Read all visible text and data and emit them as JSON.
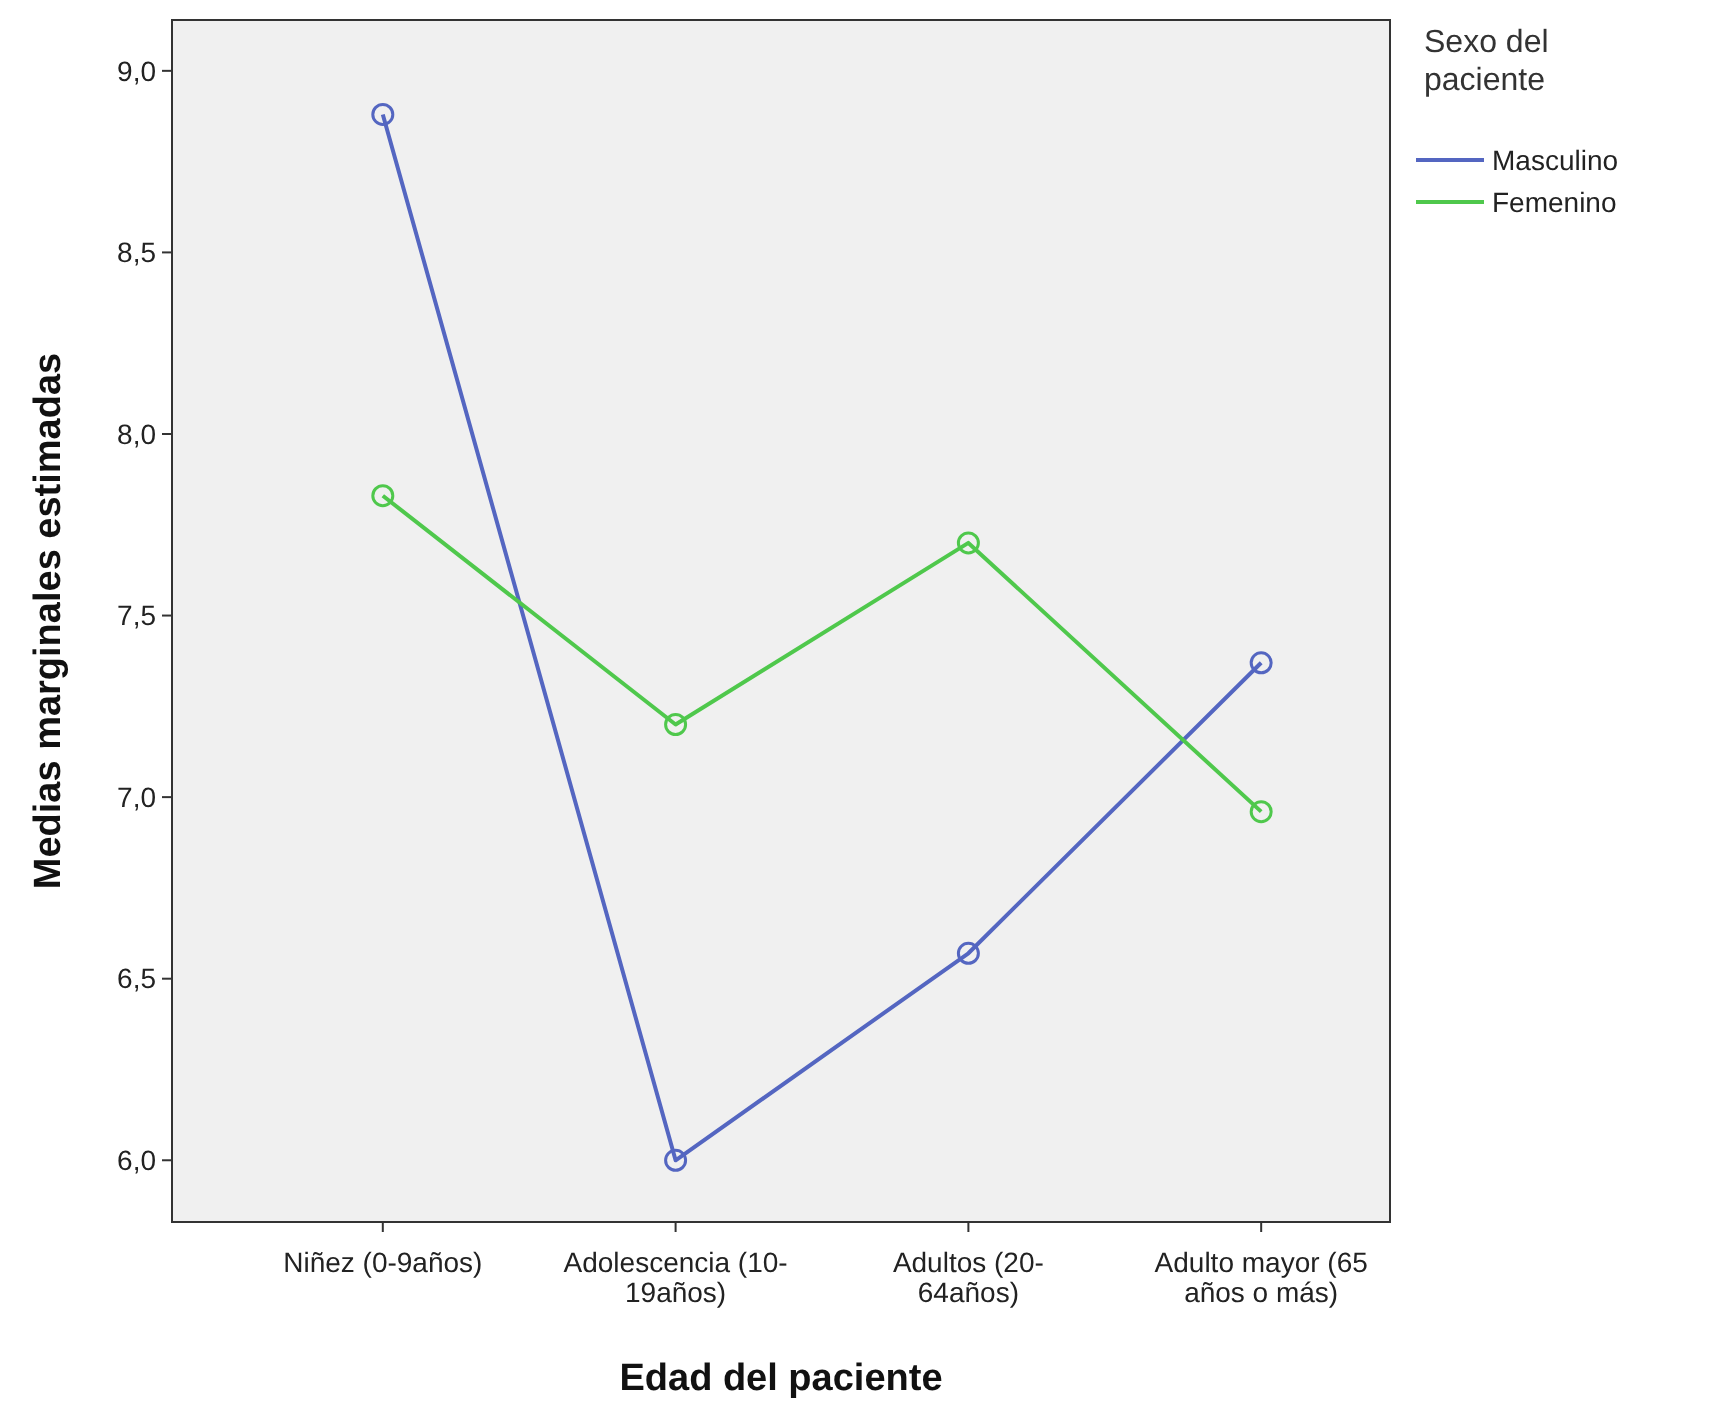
{
  "chart_data": {
    "type": "line",
    "xlabel": "Edad del paciente",
    "ylabel": "Medias marginales estimadas",
    "legend_title": "Sexo del paciente",
    "categories": [
      "Niñez (0-9años)",
      "Adolescencia (10-19años)",
      "Adultos (20-64años)",
      "Adulto mayor (65 años o más)"
    ],
    "series": [
      {
        "name": "Masculino",
        "color": "#5466c1",
        "values": [
          8.88,
          6.0,
          6.57,
          7.37
        ]
      },
      {
        "name": "Femenino",
        "color": "#4fc84c",
        "values": [
          7.83,
          7.2,
          7.7,
          6.96
        ]
      }
    ],
    "ylim": [
      5.83,
      9.14
    ],
    "yticks": [
      {
        "value": 6,
        "label": "6,0"
      },
      {
        "value": 6.5,
        "label": "6,5"
      },
      {
        "value": 7,
        "label": "7,0"
      },
      {
        "value": 7.5,
        "label": "7,5"
      },
      {
        "value": 8,
        "label": "8,0"
      },
      {
        "value": 8.5,
        "label": "8,5"
      },
      {
        "value": 9,
        "label": "9,0"
      }
    ],
    "grid": false,
    "legend": "top right",
    "marker": "circle",
    "line_style": "solid"
  }
}
